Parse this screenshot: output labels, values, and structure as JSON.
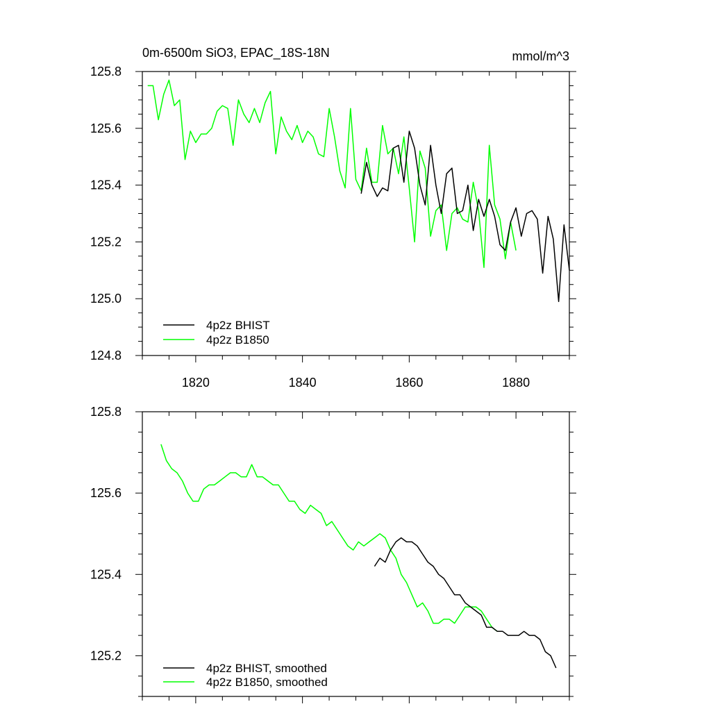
{
  "chart_data": [
    {
      "type": "line",
      "title": "0m-6500m SiO3, EPAC_18S-18N",
      "units": "mmol/m^3",
      "xlabel": "",
      "ylabel": "",
      "xlim": [
        1810,
        1890
      ],
      "ylim": [
        124.8,
        125.8
      ],
      "xticks": [
        1820,
        1840,
        1860,
        1880
      ],
      "xtick_labels": [
        "1820",
        "1840",
        "1860",
        "1880"
      ],
      "yticks": [
        124.8,
        125.0,
        125.2,
        125.4,
        125.6,
        125.8
      ],
      "ytick_labels": [
        "124.8",
        "125.0",
        "125.2",
        "125.4",
        "125.6",
        "125.8"
      ],
      "legend_position": "bottom-left",
      "series": [
        {
          "name": "4p2z BHIST",
          "color": "#000000",
          "x": [
            1851,
            1852,
            1853,
            1854,
            1855,
            1856,
            1857,
            1858,
            1859,
            1860,
            1861,
            1862,
            1863,
            1864,
            1865,
            1866,
            1867,
            1868,
            1869,
            1870,
            1871,
            1872,
            1873,
            1874,
            1875,
            1876,
            1877,
            1878,
            1879,
            1880,
            1881,
            1882,
            1883,
            1884,
            1885,
            1886,
            1887,
            1888,
            1889,
            1890
          ],
          "values": [
            125.37,
            125.48,
            125.4,
            125.36,
            125.39,
            125.38,
            125.53,
            125.54,
            125.41,
            125.59,
            125.53,
            125.4,
            125.33,
            125.54,
            125.4,
            125.3,
            125.44,
            125.46,
            125.3,
            125.31,
            125.4,
            125.24,
            125.35,
            125.29,
            125.35,
            125.29,
            125.19,
            125.17,
            125.27,
            125.32,
            125.22,
            125.3,
            125.31,
            125.28,
            125.09,
            125.29,
            125.21,
            124.99,
            125.26,
            125.1
          ]
        },
        {
          "name": "4p2z B1850",
          "color": "#00ff00",
          "x": [
            1811,
            1812,
            1813,
            1814,
            1815,
            1816,
            1817,
            1818,
            1819,
            1820,
            1821,
            1822,
            1823,
            1824,
            1825,
            1826,
            1827,
            1828,
            1829,
            1830,
            1831,
            1832,
            1833,
            1834,
            1835,
            1836,
            1837,
            1838,
            1839,
            1840,
            1841,
            1842,
            1843,
            1844,
            1845,
            1846,
            1847,
            1848,
            1849,
            1850,
            1851,
            1852,
            1853,
            1854,
            1855,
            1856,
            1857,
            1858,
            1859,
            1860,
            1861,
            1862,
            1863,
            1864,
            1865,
            1866,
            1867,
            1868,
            1869,
            1870,
            1871,
            1872,
            1873,
            1874,
            1875,
            1876,
            1877,
            1878,
            1879,
            1880
          ],
          "values": [
            125.75,
            125.75,
            125.63,
            125.72,
            125.77,
            125.68,
            125.7,
            125.49,
            125.59,
            125.55,
            125.58,
            125.58,
            125.6,
            125.66,
            125.68,
            125.67,
            125.54,
            125.7,
            125.65,
            125.62,
            125.67,
            125.62,
            125.69,
            125.73,
            125.51,
            125.64,
            125.59,
            125.56,
            125.61,
            125.55,
            125.59,
            125.57,
            125.51,
            125.5,
            125.67,
            125.57,
            125.45,
            125.39,
            125.67,
            125.42,
            125.38,
            125.53,
            125.41,
            125.41,
            125.61,
            125.51,
            125.53,
            125.44,
            125.57,
            125.39,
            125.2,
            125.52,
            125.46,
            125.22,
            125.31,
            125.33,
            125.17,
            125.3,
            125.32,
            125.28,
            125.27,
            125.41,
            125.31,
            125.11,
            125.54,
            125.33,
            125.28,
            125.14,
            125.27,
            125.17
          ]
        }
      ]
    },
    {
      "type": "line",
      "title": "",
      "xlabel": "",
      "ylabel": "",
      "xlim": [
        1810,
        1890
      ],
      "ylim": [
        125.1,
        125.8
      ],
      "xticks": [
        1820,
        1840,
        1860,
        1880
      ],
      "yticks": [
        125.2,
        125.4,
        125.6,
        125.8
      ],
      "ytick_labels": [
        "125.2",
        "125.4",
        "125.6",
        "125.8"
      ],
      "legend_position": "bottom-left",
      "series": [
        {
          "name": "4p2z BHIST, smoothed",
          "color": "#000000",
          "x": [
            1853.5,
            1854.5,
            1855.5,
            1856.5,
            1857.5,
            1858.5,
            1859.5,
            1860.5,
            1861.5,
            1862.5,
            1863.5,
            1864.5,
            1865.5,
            1866.5,
            1867.5,
            1868.5,
            1869.5,
            1870.5,
            1871.5,
            1872.5,
            1873.5,
            1874.5,
            1875.5,
            1876.5,
            1877.5,
            1878.5,
            1879.5,
            1880.5,
            1881.5,
            1882.5,
            1883.5,
            1884.5,
            1885.5,
            1886.5,
            1887.5
          ],
          "values": [
            125.42,
            125.44,
            125.43,
            125.46,
            125.48,
            125.49,
            125.48,
            125.48,
            125.47,
            125.45,
            125.43,
            125.42,
            125.4,
            125.39,
            125.37,
            125.35,
            125.35,
            125.33,
            125.32,
            125.31,
            125.3,
            125.27,
            125.27,
            125.26,
            125.26,
            125.25,
            125.25,
            125.25,
            125.26,
            125.25,
            125.25,
            125.24,
            125.21,
            125.2,
            125.17
          ]
        },
        {
          "name": "4p2z B1850, smoothed",
          "color": "#00ff00",
          "x": [
            1813.5,
            1814.5,
            1815.5,
            1816.5,
            1817.5,
            1818.5,
            1819.5,
            1820.5,
            1821.5,
            1822.5,
            1823.5,
            1824.5,
            1825.5,
            1826.5,
            1827.5,
            1828.5,
            1829.5,
            1830.5,
            1831.5,
            1832.5,
            1833.5,
            1834.5,
            1835.5,
            1836.5,
            1837.5,
            1838.5,
            1839.5,
            1840.5,
            1841.5,
            1842.5,
            1843.5,
            1844.5,
            1845.5,
            1846.5,
            1847.5,
            1848.5,
            1849.5,
            1850.5,
            1851.5,
            1852.5,
            1853.5,
            1854.5,
            1855.5,
            1856.5,
            1857.5,
            1858.5,
            1859.5,
            1860.5,
            1861.5,
            1862.5,
            1863.5,
            1864.5,
            1865.5,
            1866.5,
            1867.5,
            1868.5,
            1869.5,
            1870.5,
            1871.5,
            1872.5,
            1873.5,
            1874.5,
            1875.5,
            1876.5
          ],
          "values": [
            125.72,
            125.68,
            125.66,
            125.65,
            125.63,
            125.6,
            125.58,
            125.58,
            125.61,
            125.62,
            125.62,
            125.63,
            125.64,
            125.65,
            125.65,
            125.64,
            125.64,
            125.67,
            125.64,
            125.64,
            125.63,
            125.62,
            125.62,
            125.6,
            125.58,
            125.58,
            125.56,
            125.55,
            125.57,
            125.56,
            125.55,
            125.52,
            125.53,
            125.51,
            125.49,
            125.47,
            125.46,
            125.48,
            125.47,
            125.48,
            125.49,
            125.5,
            125.49,
            125.46,
            125.44,
            125.4,
            125.38,
            125.35,
            125.32,
            125.33,
            125.31,
            125.28,
            125.28,
            125.29,
            125.29,
            125.28,
            125.3,
            125.32,
            125.32,
            125.32,
            125.31,
            125.29,
            125.27,
            125.26
          ]
        }
      ]
    }
  ]
}
